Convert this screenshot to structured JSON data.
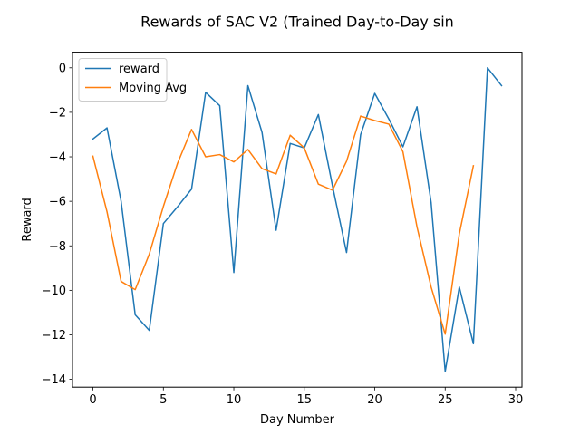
{
  "chart_data": {
    "type": "line",
    "title": "Rewards of SAC V2 (Trained Day-to-Day sin",
    "xlabel": "Day Number",
    "ylabel": "Reward",
    "xlim": [
      -1.45,
      30.45
    ],
    "ylim": [
      -14.35,
      0.7
    ],
    "xticks": [
      0,
      5,
      10,
      15,
      20,
      25,
      30
    ],
    "yticks": [
      0,
      -2,
      -4,
      -6,
      -8,
      -10,
      -12,
      -14
    ],
    "grid": false,
    "legend_position": "top-left",
    "series": [
      {
        "name": "reward",
        "color": "#1f77b4",
        "x": [
          0,
          1,
          2,
          3,
          4,
          5,
          6,
          7,
          8,
          9,
          10,
          11,
          12,
          13,
          14,
          15,
          16,
          17,
          18,
          19,
          20,
          21,
          22,
          23,
          24,
          25,
          26,
          27,
          28,
          29
        ],
        "values": [
          -3.2,
          -2.7,
          -6.0,
          -11.1,
          -11.8,
          -7.0,
          -6.25,
          -5.45,
          -1.1,
          -1.7,
          -9.2,
          -0.8,
          -2.9,
          -7.3,
          -3.4,
          -3.6,
          -2.1,
          -5.3,
          -8.3,
          -3.0,
          -1.15,
          -2.3,
          -3.55,
          -1.75,
          -6.05,
          -13.65,
          -9.85,
          -12.4,
          0.0,
          -0.8
        ]
      },
      {
        "name": "Moving Avg",
        "color": "#ff7f0e",
        "x": [
          0,
          1,
          2,
          3,
          4,
          5,
          6,
          7,
          8,
          9,
          10,
          11,
          12,
          13,
          14,
          15,
          16,
          17,
          18,
          19,
          20,
          21,
          22,
          23,
          24,
          25,
          26,
          27
        ],
        "values": [
          -3.97,
          -6.47,
          -9.6,
          -9.97,
          -8.37,
          -6.23,
          -4.3,
          -2.77,
          -4.0,
          -3.9,
          -4.23,
          -3.67,
          -4.53,
          -4.77,
          -3.03,
          -3.6,
          -5.23,
          -5.5,
          -4.2,
          -2.17,
          -2.37,
          -2.53,
          -3.77,
          -7.15,
          -9.85,
          -11.97,
          -7.47,
          -4.4
        ]
      }
    ]
  }
}
